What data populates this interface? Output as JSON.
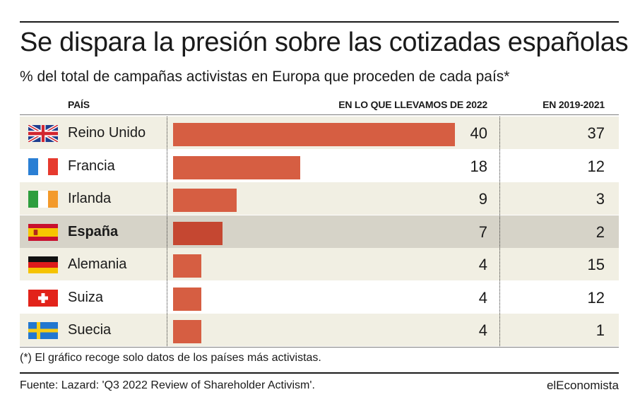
{
  "title": "Se dispara la presión sobre las cotizadas españolas",
  "subtitle": "% del total de campañas activistas en Europa que proceden de cada país*",
  "columns": {
    "country": "PAÍS",
    "current": "EN LO QUE LLEVAMOS DE 2022",
    "previous": "EN 2019-2021"
  },
  "colors": {
    "bar": "#d65e42",
    "bar_highlight": "#c54731",
    "row_shade": "#f1efe3",
    "row_highlight": "#d6d3c8"
  },
  "chart_data": {
    "type": "bar",
    "orientation": "horizontal",
    "categories": [
      "Reino Unido",
      "Francia",
      "Irlanda",
      "España",
      "Alemania",
      "Suiza",
      "Suecia"
    ],
    "series": [
      {
        "name": "EN LO QUE LLEVAMOS DE 2022",
        "values": [
          40,
          18,
          9,
          7,
          4,
          4,
          4
        ]
      },
      {
        "name": "EN 2019-2021",
        "values": [
          37,
          12,
          3,
          2,
          15,
          12,
          1
        ]
      }
    ],
    "bar_series": "EN LO QUE LLEVAMOS DE 2022",
    "highlighted_category": "España",
    "xlim": [
      0,
      40
    ],
    "grid": false,
    "legend": "none"
  },
  "rows": [
    {
      "country": "Reino Unido",
      "flag": "uk-flag-icon",
      "v2022": "40",
      "v2021": "37"
    },
    {
      "country": "Francia",
      "flag": "france-flag-icon",
      "v2022": "18",
      "v2021": "12"
    },
    {
      "country": "Irlanda",
      "flag": "ireland-flag-icon",
      "v2022": "9",
      "v2021": "3"
    },
    {
      "country": "España",
      "flag": "spain-flag-icon",
      "v2022": "7",
      "v2021": "2"
    },
    {
      "country": "Alemania",
      "flag": "germany-flag-icon",
      "v2022": "4",
      "v2021": "15"
    },
    {
      "country": "Suiza",
      "flag": "switzerland-flag-icon",
      "v2022": "4",
      "v2021": "12"
    },
    {
      "country": "Suecia",
      "flag": "sweden-flag-icon",
      "v2022": "4",
      "v2021": "1"
    }
  ],
  "note": "(*) El gráfico recoge solo datos de los países más activistas.",
  "source": "Fuente: Lazard: 'Q3 2022 Review of Shareholder Activism'.",
  "brand": "elEconomista"
}
